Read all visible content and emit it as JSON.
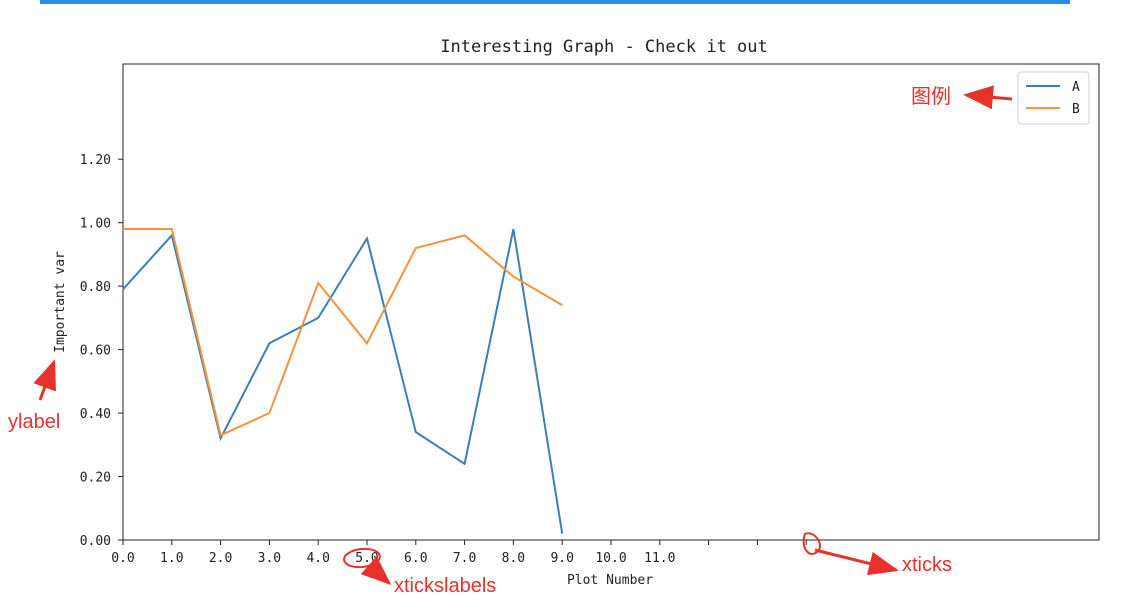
{
  "chart_data": {
    "type": "line",
    "title": "Interesting Graph - Check it out",
    "xlabel": "Plot Number",
    "ylabel": "Important var",
    "xlim": [
      0,
      20
    ],
    "ylim": [
      0,
      1.5
    ],
    "x": [
      0,
      1,
      2,
      3,
      4,
      5,
      6,
      7,
      8,
      9
    ],
    "series": [
      {
        "name": "A",
        "color": "#3b7fb9",
        "values": [
          0.79,
          0.96,
          0.32,
          0.62,
          0.7,
          0.95,
          0.34,
          0.24,
          0.98,
          0.02
        ]
      },
      {
        "name": "B",
        "color": "#f5923a",
        "values": [
          0.98,
          0.98,
          0.33,
          0.4,
          0.81,
          0.62,
          0.92,
          0.96,
          0.83,
          0.74
        ]
      }
    ],
    "xticks": [
      0,
      1,
      2,
      3,
      4,
      5,
      6,
      7,
      8,
      9,
      10,
      11,
      12,
      13,
      14
    ],
    "xticklabels": [
      "0.0",
      "1.0",
      "2.0",
      "3.0",
      "4.0",
      "5.0",
      "6.0",
      "7.0",
      "8.0",
      "9.0",
      "10.0",
      "11.0",
      "",
      "",
      ""
    ],
    "yticks": [
      0,
      0.2,
      0.4,
      0.6,
      0.8,
      1.0,
      1.2
    ],
    "yticklabels": [
      "0.00",
      "0.20",
      "0.40",
      "0.60",
      "0.80",
      "1.00",
      "1.20"
    ],
    "grid": false,
    "legend_position": "top-right"
  },
  "annotations": {
    "legend_note": "图例",
    "ylabel_note": "ylabel",
    "xtickslabels_note": "xtickslabels",
    "xticks_note": "xticks",
    "color": "#e8312b"
  },
  "top_bar_color": "#2b8ce8"
}
